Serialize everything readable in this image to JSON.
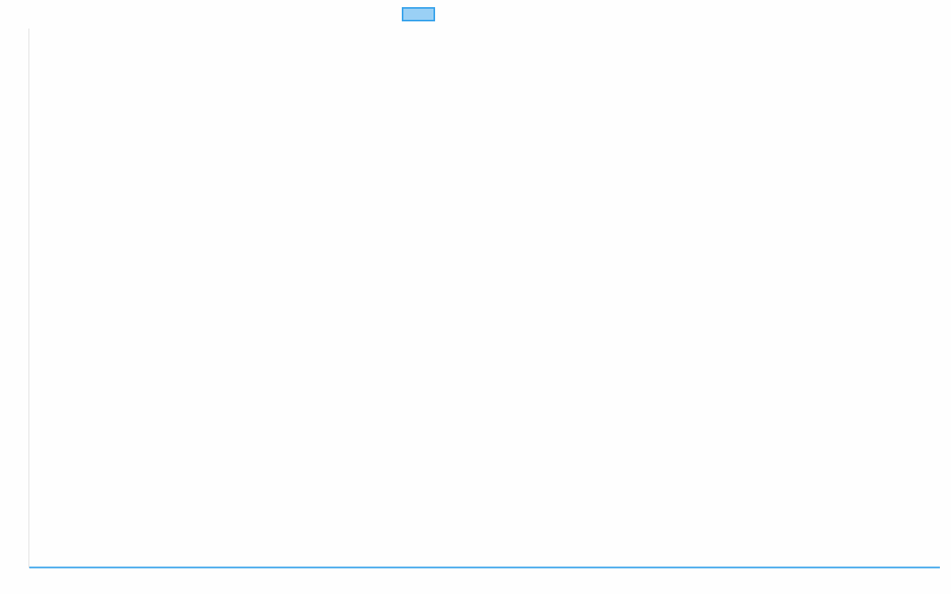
{
  "chart_data": {
    "type": "line",
    "title": "",
    "xlabel": "",
    "ylabel": "",
    "categories": [],
    "series": [
      {
        "values": [],
        "color": "#36a2eb",
        "fill": "#9ad0f5"
      }
    ],
    "legend": "top",
    "grid": false
  }
}
